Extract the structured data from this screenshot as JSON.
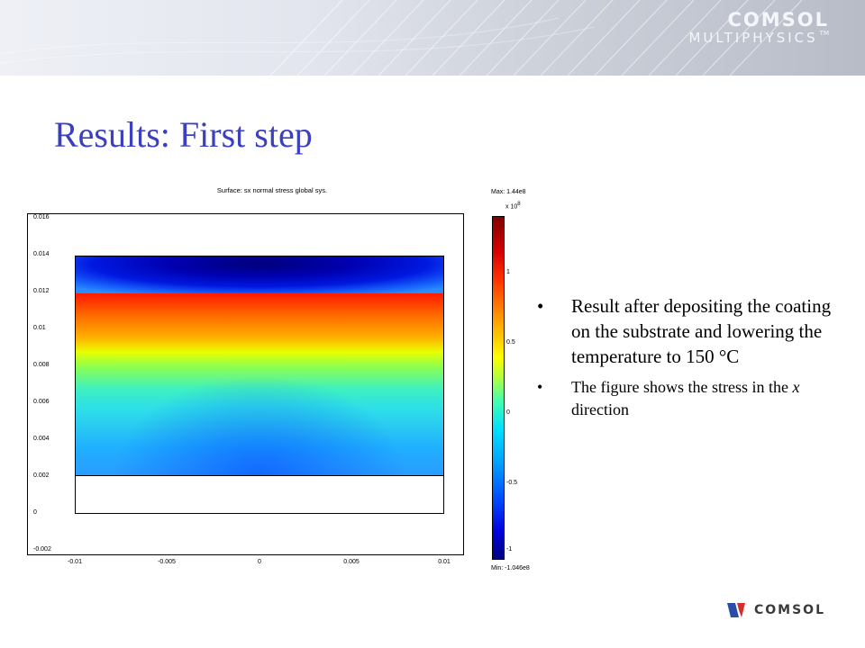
{
  "header": {
    "brand_line1": "COMSOL",
    "brand_line2": "MULTIPHYSICS",
    "trademark": "TM"
  },
  "slide": {
    "title": "Results: First step"
  },
  "plot": {
    "title": "Surface: sx normal stress global sys.",
    "y_ticks": [
      "0.016",
      "0.014",
      "0.012",
      "0.01",
      "0.008",
      "0.006",
      "0.004",
      "0.002",
      "0",
      "-0.002"
    ],
    "x_ticks": [
      "-0.01",
      "-0.005",
      "0",
      "0.005",
      "0.01"
    ],
    "colorbar": {
      "max_label": "Max: 1.44e8",
      "min_label": "Min: -1.046e8",
      "exponent_base": "x 10",
      "exponent": "8",
      "ticks": [
        "1",
        "0.5",
        "0",
        "-0.5",
        "-1"
      ],
      "colors": [
        "#7f0000",
        "#ff3000",
        "#ffff00",
        "#40ffb0",
        "#00a0ff",
        "#00007f"
      ]
    }
  },
  "bullets": [
    {
      "symbol": "•",
      "text_before": "Result after depositing the coating on the substrate and lowering the temperature to 150 ",
      "unit": "°C"
    },
    {
      "symbol": "•",
      "text_before": "The figure shows the stress in the ",
      "italic": "x",
      "text_after": " direction"
    }
  ],
  "footer": {
    "brand": "COMSOL"
  }
}
